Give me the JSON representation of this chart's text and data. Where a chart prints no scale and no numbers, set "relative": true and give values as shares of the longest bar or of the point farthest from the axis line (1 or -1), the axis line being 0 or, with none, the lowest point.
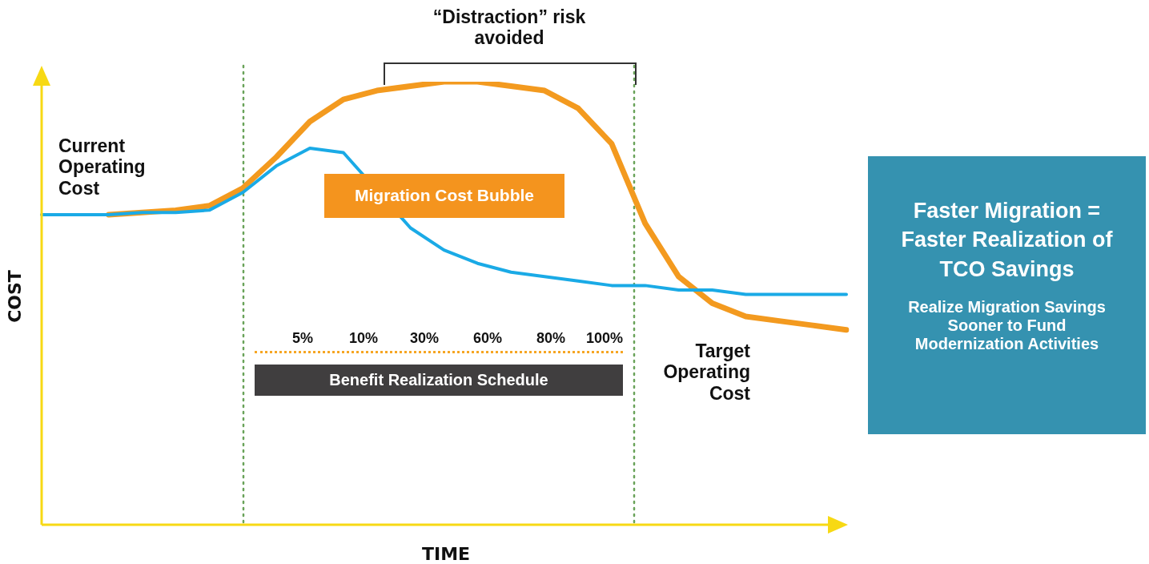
{
  "chart_data": {
    "type": "line",
    "relative": true,
    "xlabel": "TIME",
    "ylabel": "COST",
    "tick_labels": false,
    "categories": [
      null,
      null,
      null,
      null,
      null,
      null,
      null,
      null,
      null,
      null,
      null,
      null,
      null,
      null,
      null,
      null,
      null,
      null,
      null,
      null,
      null,
      null,
      null,
      null,
      null
    ],
    "series": [
      {
        "color": "#f39a1f",
        "values": [
          null,
          null,
          0.7,
          0.705,
          0.71,
          0.72,
          0.76,
          0.83,
          0.91,
          0.96,
          0.98,
          0.99,
          1.0,
          1.0,
          0.99,
          0.98,
          0.94,
          0.86,
          0.68,
          0.56,
          0.5,
          0.47,
          0.46,
          0.45,
          0.44
        ]
      },
      {
        "color": "#1aaae6",
        "values": [
          0.7,
          0.7,
          0.7,
          0.705,
          0.705,
          0.71,
          0.75,
          0.81,
          0.85,
          0.84,
          null,
          0.67,
          0.62,
          0.59,
          0.57,
          0.56,
          0.55,
          0.54,
          0.54,
          0.53,
          0.53,
          0.52,
          0.52,
          0.52,
          0.52
        ]
      }
    ],
    "ref_lines": [
      {
        "axis": "x",
        "color": "#6aa35a",
        "line_style": "dotted"
      },
      {
        "axis": "x",
        "color": "#6aa35a",
        "line_style": "dotted"
      }
    ],
    "annotations": [
      "Current Operating Cost",
      "“Distraction” risk avoided",
      "Migration Cost Bubble",
      "5%",
      "10%",
      "30%",
      "60%",
      "80%",
      "100%",
      "Benefit Realization Schedule",
      "Target Operating Cost",
      "Faster Migration = Faster Realization of TCO Savings",
      "Realize Migration Savings Sooner to Fund Modernization Activities"
    ]
  }
}
